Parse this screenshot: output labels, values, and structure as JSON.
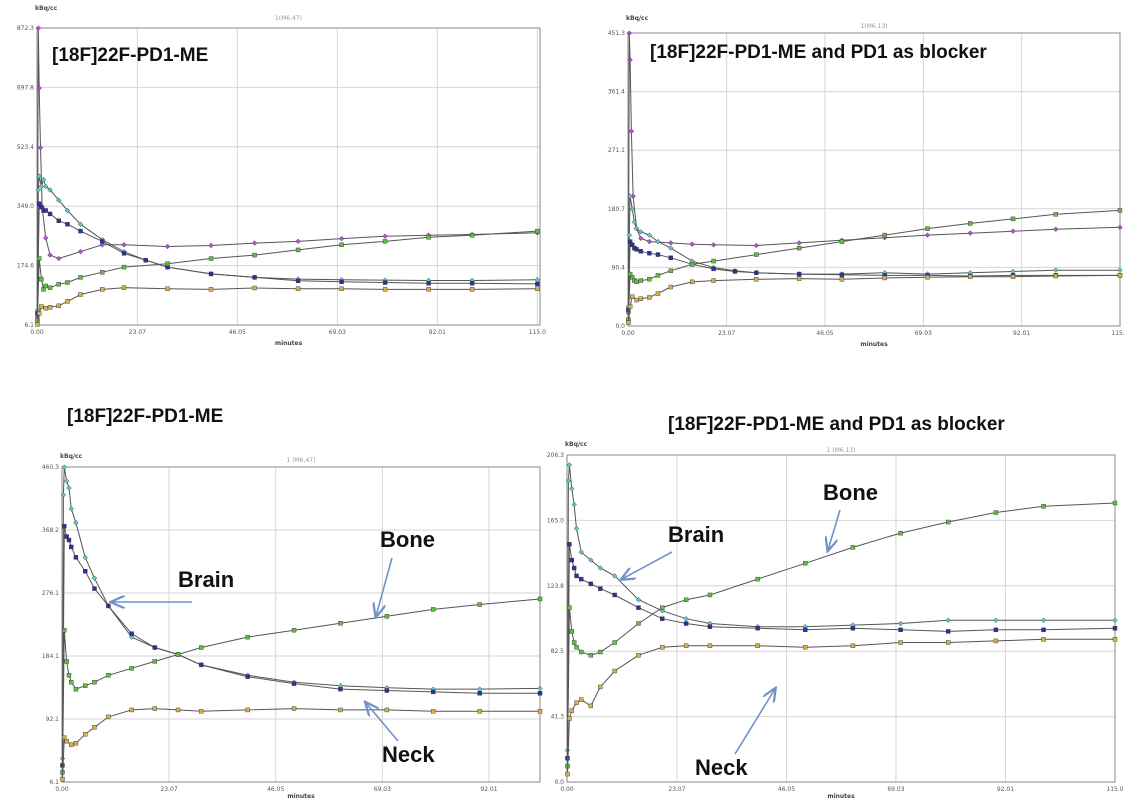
{
  "colors": {
    "Brain": "#2f2f9e",
    "Brain_hollow": "#5cc9c4",
    "Bone": "#5fbf3f",
    "Neck": "#d6b14a",
    "Blood": "#b64fd0",
    "arrow": "#6f93c8"
  },
  "chart_data": [
    {
      "type": "line",
      "title": "[18F]22F-PD1-ME",
      "subtitle": "1(M6,47)",
      "ylabel": "kBq/cc",
      "xlabel": "minutes",
      "xlim": [
        0,
        115.6
      ],
      "ylim": [
        6.1,
        872.3
      ],
      "x_ticks": [
        "0.00",
        "23.07",
        "46.05",
        "69.03",
        "92.01",
        "115.0"
      ],
      "y_ticks": [
        "6.1",
        "174.6",
        "349.0",
        "523.4",
        "697.8",
        "872.3"
      ],
      "series": [
        {
          "color_key": "Blood",
          "marker": "diamond",
          "x": [
            0.1,
            0.3,
            0.5,
            0.8,
            1.2,
            2,
            3,
            5,
            10,
            15,
            20,
            30,
            40,
            50,
            60,
            70,
            80,
            90,
            100,
            115
          ],
          "y": [
            30,
            872,
            697,
            523,
            349,
            260,
            210,
            200,
            220,
            240,
            240,
            235,
            238,
            245,
            250,
            258,
            265,
            268,
            270,
            275
          ]
        },
        {
          "color_key": "Brain_hollow",
          "marker": "diamond",
          "x": [
            0.1,
            0.3,
            0.5,
            1,
            1.5,
            2,
            3,
            5,
            7,
            10,
            15,
            20,
            25,
            30,
            40,
            50,
            60,
            70,
            80,
            90,
            100,
            115
          ],
          "y": [
            50,
            400,
            440,
            410,
            430,
            410,
            400,
            370,
            340,
            300,
            255,
            220,
            195,
            175,
            155,
            145,
            140,
            138,
            137,
            136,
            136,
            138
          ]
        },
        {
          "color_key": "Brain",
          "marker": "square",
          "x": [
            0.1,
            0.5,
            1,
            1.5,
            2,
            3,
            5,
            7,
            10,
            15,
            20,
            25,
            30,
            40,
            50,
            60,
            70,
            80,
            90,
            100,
            115
          ],
          "y": [
            40,
            360,
            350,
            340,
            340,
            330,
            310,
            300,
            280,
            250,
            215,
            195,
            175,
            155,
            145,
            135,
            132,
            130,
            128,
            128,
            126
          ]
        },
        {
          "color_key": "Bone",
          "marker": "square",
          "x": [
            0.1,
            0.5,
            1,
            1.5,
            2,
            3,
            5,
            7,
            10,
            15,
            20,
            30,
            40,
            50,
            60,
            70,
            80,
            90,
            100,
            115
          ],
          "y": [
            20,
            200,
            140,
            110,
            120,
            115,
            125,
            130,
            145,
            160,
            175,
            185,
            200,
            210,
            225,
            240,
            250,
            262,
            268,
            280
          ]
        },
        {
          "color_key": "Neck",
          "marker": "square",
          "x": [
            0.1,
            0.5,
            1,
            2,
            3,
            5,
            7,
            10,
            15,
            20,
            30,
            40,
            50,
            60,
            70,
            80,
            90,
            100,
            115
          ],
          "y": [
            8,
            40,
            60,
            55,
            58,
            62,
            75,
            95,
            110,
            115,
            112,
            110,
            114,
            112,
            112,
            110,
            110,
            110,
            112
          ]
        }
      ]
    },
    {
      "type": "line",
      "title": "[18F]22F-PD1-ME and PD1 as blocker",
      "subtitle": "1(M6,13)",
      "ylabel": "kBq/cc",
      "xlabel": "minutes",
      "xlim": [
        0,
        115.0
      ],
      "ylim": [
        0.0,
        451.3
      ],
      "x_ticks": [
        "0.00",
        "23.07",
        "46.05",
        "69.03",
        "92.01",
        "115.0"
      ],
      "y_ticks": [
        "0.0",
        "90.4",
        "180.7",
        "271.1",
        "361.4",
        "451.3"
      ],
      "series": [
        {
          "color_key": "Blood",
          "marker": "diamond",
          "x": [
            0.1,
            0.3,
            0.5,
            0.8,
            1.2,
            2,
            3,
            5,
            10,
            15,
            20,
            30,
            40,
            50,
            60,
            70,
            80,
            90,
            100,
            115
          ],
          "y": [
            20,
            451,
            410,
            300,
            200,
            150,
            135,
            130,
            128,
            126,
            125,
            124,
            128,
            132,
            136,
            140,
            143,
            146,
            149,
            152
          ]
        },
        {
          "color_key": "Brain_hollow",
          "marker": "diamond",
          "x": [
            0.1,
            0.3,
            0.5,
            1,
            1.5,
            2,
            3,
            5,
            7,
            10,
            15,
            20,
            25,
            30,
            40,
            50,
            60,
            70,
            80,
            90,
            100,
            115
          ],
          "y": [
            30,
            140,
            200,
            180,
            160,
            150,
            145,
            140,
            130,
            120,
            100,
            90,
            85,
            82,
            80,
            80,
            82,
            80,
            82,
            84,
            86,
            86
          ]
        },
        {
          "color_key": "Brain",
          "marker": "square",
          "x": [
            0.1,
            0.5,
            1,
            1.5,
            2,
            3,
            5,
            7,
            10,
            15,
            20,
            25,
            30,
            40,
            50,
            60,
            70,
            80,
            90,
            100,
            115
          ],
          "y": [
            25,
            130,
            125,
            120,
            118,
            115,
            112,
            110,
            105,
            95,
            88,
            84,
            82,
            80,
            79,
            78,
            78,
            77,
            78,
            78,
            78
          ]
        },
        {
          "color_key": "Bone",
          "marker": "square",
          "x": [
            0.1,
            0.5,
            1,
            1.5,
            2,
            3,
            5,
            7,
            10,
            15,
            20,
            30,
            40,
            50,
            60,
            70,
            80,
            90,
            100,
            115
          ],
          "y": [
            10,
            80,
            75,
            70,
            68,
            70,
            72,
            78,
            85,
            95,
            100,
            110,
            120,
            130,
            140,
            150,
            158,
            165,
            172,
            178
          ]
        },
        {
          "color_key": "Neck",
          "marker": "square",
          "x": [
            0.1,
            0.5,
            1,
            2,
            3,
            5,
            7,
            10,
            15,
            20,
            30,
            40,
            50,
            60,
            70,
            80,
            90,
            100,
            115
          ],
          "y": [
            5,
            30,
            45,
            40,
            42,
            44,
            50,
            60,
            68,
            70,
            72,
            73,
            72,
            74,
            75,
            76,
            76,
            77,
            78
          ]
        }
      ]
    },
    {
      "type": "line",
      "title": "[18F]22F-PD1-ME",
      "subtitle": "1 (M6,47)",
      "ylabel": "kBq/cc",
      "xlabel": "minutes",
      "xlim": [
        0,
        103
      ],
      "ylim": [
        6.1,
        460.3
      ],
      "x_ticks": [
        "0.00",
        "23.07",
        "46.05",
        "69.03",
        "92.01"
      ],
      "y_ticks": [
        "6.1",
        "92.1",
        "184.1",
        "276.1",
        "368.2",
        "460.3"
      ],
      "series": [
        {
          "color_key": "Brain_hollow",
          "marker": "diamond",
          "x": [
            0.1,
            0.3,
            0.5,
            1,
            1.5,
            2,
            3,
            5,
            7,
            10,
            15,
            20,
            25,
            30,
            40,
            50,
            60,
            70,
            80,
            90,
            103
          ],
          "y": [
            40,
            420,
            460,
            440,
            430,
            400,
            380,
            330,
            300,
            260,
            215,
            200,
            190,
            175,
            160,
            150,
            145,
            142,
            140,
            140,
            141
          ]
        },
        {
          "color_key": "Brain",
          "marker": "square",
          "x": [
            0.1,
            0.5,
            1,
            1.5,
            2,
            3,
            5,
            7,
            10,
            15,
            20,
            25,
            30,
            40,
            50,
            60,
            70,
            80,
            90,
            103
          ],
          "y": [
            30,
            375,
            360,
            355,
            345,
            330,
            310,
            285,
            260,
            220,
            200,
            190,
            175,
            158,
            148,
            140,
            138,
            136,
            134,
            134
          ]
        },
        {
          "color_key": "Bone",
          "marker": "square",
          "x": [
            0.1,
            0.5,
            1,
            1.5,
            2,
            3,
            5,
            7,
            10,
            15,
            20,
            25,
            30,
            40,
            50,
            60,
            70,
            80,
            90,
            103
          ],
          "y": [
            20,
            225,
            180,
            160,
            150,
            140,
            145,
            150,
            160,
            170,
            180,
            190,
            200,
            215,
            225,
            235,
            245,
            255,
            262,
            270
          ]
        },
        {
          "color_key": "Neck",
          "marker": "square",
          "x": [
            0.1,
            0.5,
            1,
            2,
            3,
            5,
            7,
            10,
            15,
            20,
            25,
            30,
            40,
            50,
            60,
            70,
            80,
            90,
            103
          ],
          "y": [
            10,
            70,
            65,
            60,
            62,
            75,
            85,
            100,
            110,
            112,
            110,
            108,
            110,
            112,
            110,
            110,
            108,
            108,
            108
          ]
        }
      ]
    },
    {
      "type": "line",
      "title": "[18F]22F-PD1-ME and PD1 as blocker",
      "subtitle": "1 (M6,13)",
      "ylabel": "kBq/cc",
      "xlabel": "minutes",
      "xlim": [
        0,
        115.0
      ],
      "ylim": [
        0.0,
        206.3
      ],
      "x_ticks": [
        "0.00",
        "23.07",
        "46.05",
        "69.03",
        "92.01",
        "115.0"
      ],
      "y_ticks": [
        "0.0",
        "41.3",
        "82.5",
        "123.8",
        "165.0",
        "206.3"
      ],
      "series": [
        {
          "color_key": "Brain_hollow",
          "marker": "diamond",
          "x": [
            0.1,
            0.3,
            0.5,
            1,
            1.5,
            2,
            3,
            5,
            7,
            10,
            15,
            20,
            25,
            30,
            40,
            50,
            60,
            70,
            80,
            90,
            100,
            115
          ],
          "y": [
            20,
            190,
            200,
            185,
            175,
            160,
            145,
            140,
            135,
            130,
            115,
            108,
            103,
            100,
            98,
            98,
            99,
            100,
            102,
            102,
            102,
            102
          ]
        },
        {
          "color_key": "Brain",
          "marker": "square",
          "x": [
            0.1,
            0.5,
            1,
            1.5,
            2,
            3,
            5,
            7,
            10,
            15,
            20,
            25,
            30,
            40,
            50,
            60,
            70,
            80,
            90,
            100,
            115
          ],
          "y": [
            15,
            150,
            140,
            135,
            130,
            128,
            125,
            122,
            118,
            110,
            103,
            100,
            98,
            97,
            96,
            97,
            96,
            95,
            96,
            96,
            97
          ]
        },
        {
          "color_key": "Bone",
          "marker": "square",
          "x": [
            0.1,
            0.5,
            1,
            1.5,
            2,
            3,
            5,
            7,
            10,
            15,
            20,
            25,
            30,
            40,
            50,
            60,
            70,
            80,
            90,
            100,
            115
          ],
          "y": [
            10,
            110,
            95,
            88,
            85,
            82,
            80,
            82,
            88,
            100,
            110,
            115,
            118,
            128,
            138,
            148,
            157,
            164,
            170,
            174,
            176
          ]
        },
        {
          "color_key": "Neck",
          "marker": "square",
          "x": [
            0.1,
            0.5,
            1,
            2,
            3,
            5,
            7,
            10,
            15,
            20,
            25,
            30,
            40,
            50,
            60,
            70,
            80,
            90,
            100,
            115
          ],
          "y": [
            5,
            40,
            45,
            50,
            52,
            48,
            60,
            70,
            80,
            85,
            86,
            86,
            86,
            85,
            86,
            88,
            88,
            89,
            90,
            90
          ]
        }
      ]
    }
  ],
  "annotations": {
    "top_right": [],
    "bottom_left": [
      {
        "text": "Brain"
      },
      {
        "text": "Bone"
      },
      {
        "text": "Neck"
      }
    ],
    "bottom_right": [
      {
        "text": "Brain"
      },
      {
        "text": "Bone"
      },
      {
        "text": "Neck"
      }
    ]
  }
}
